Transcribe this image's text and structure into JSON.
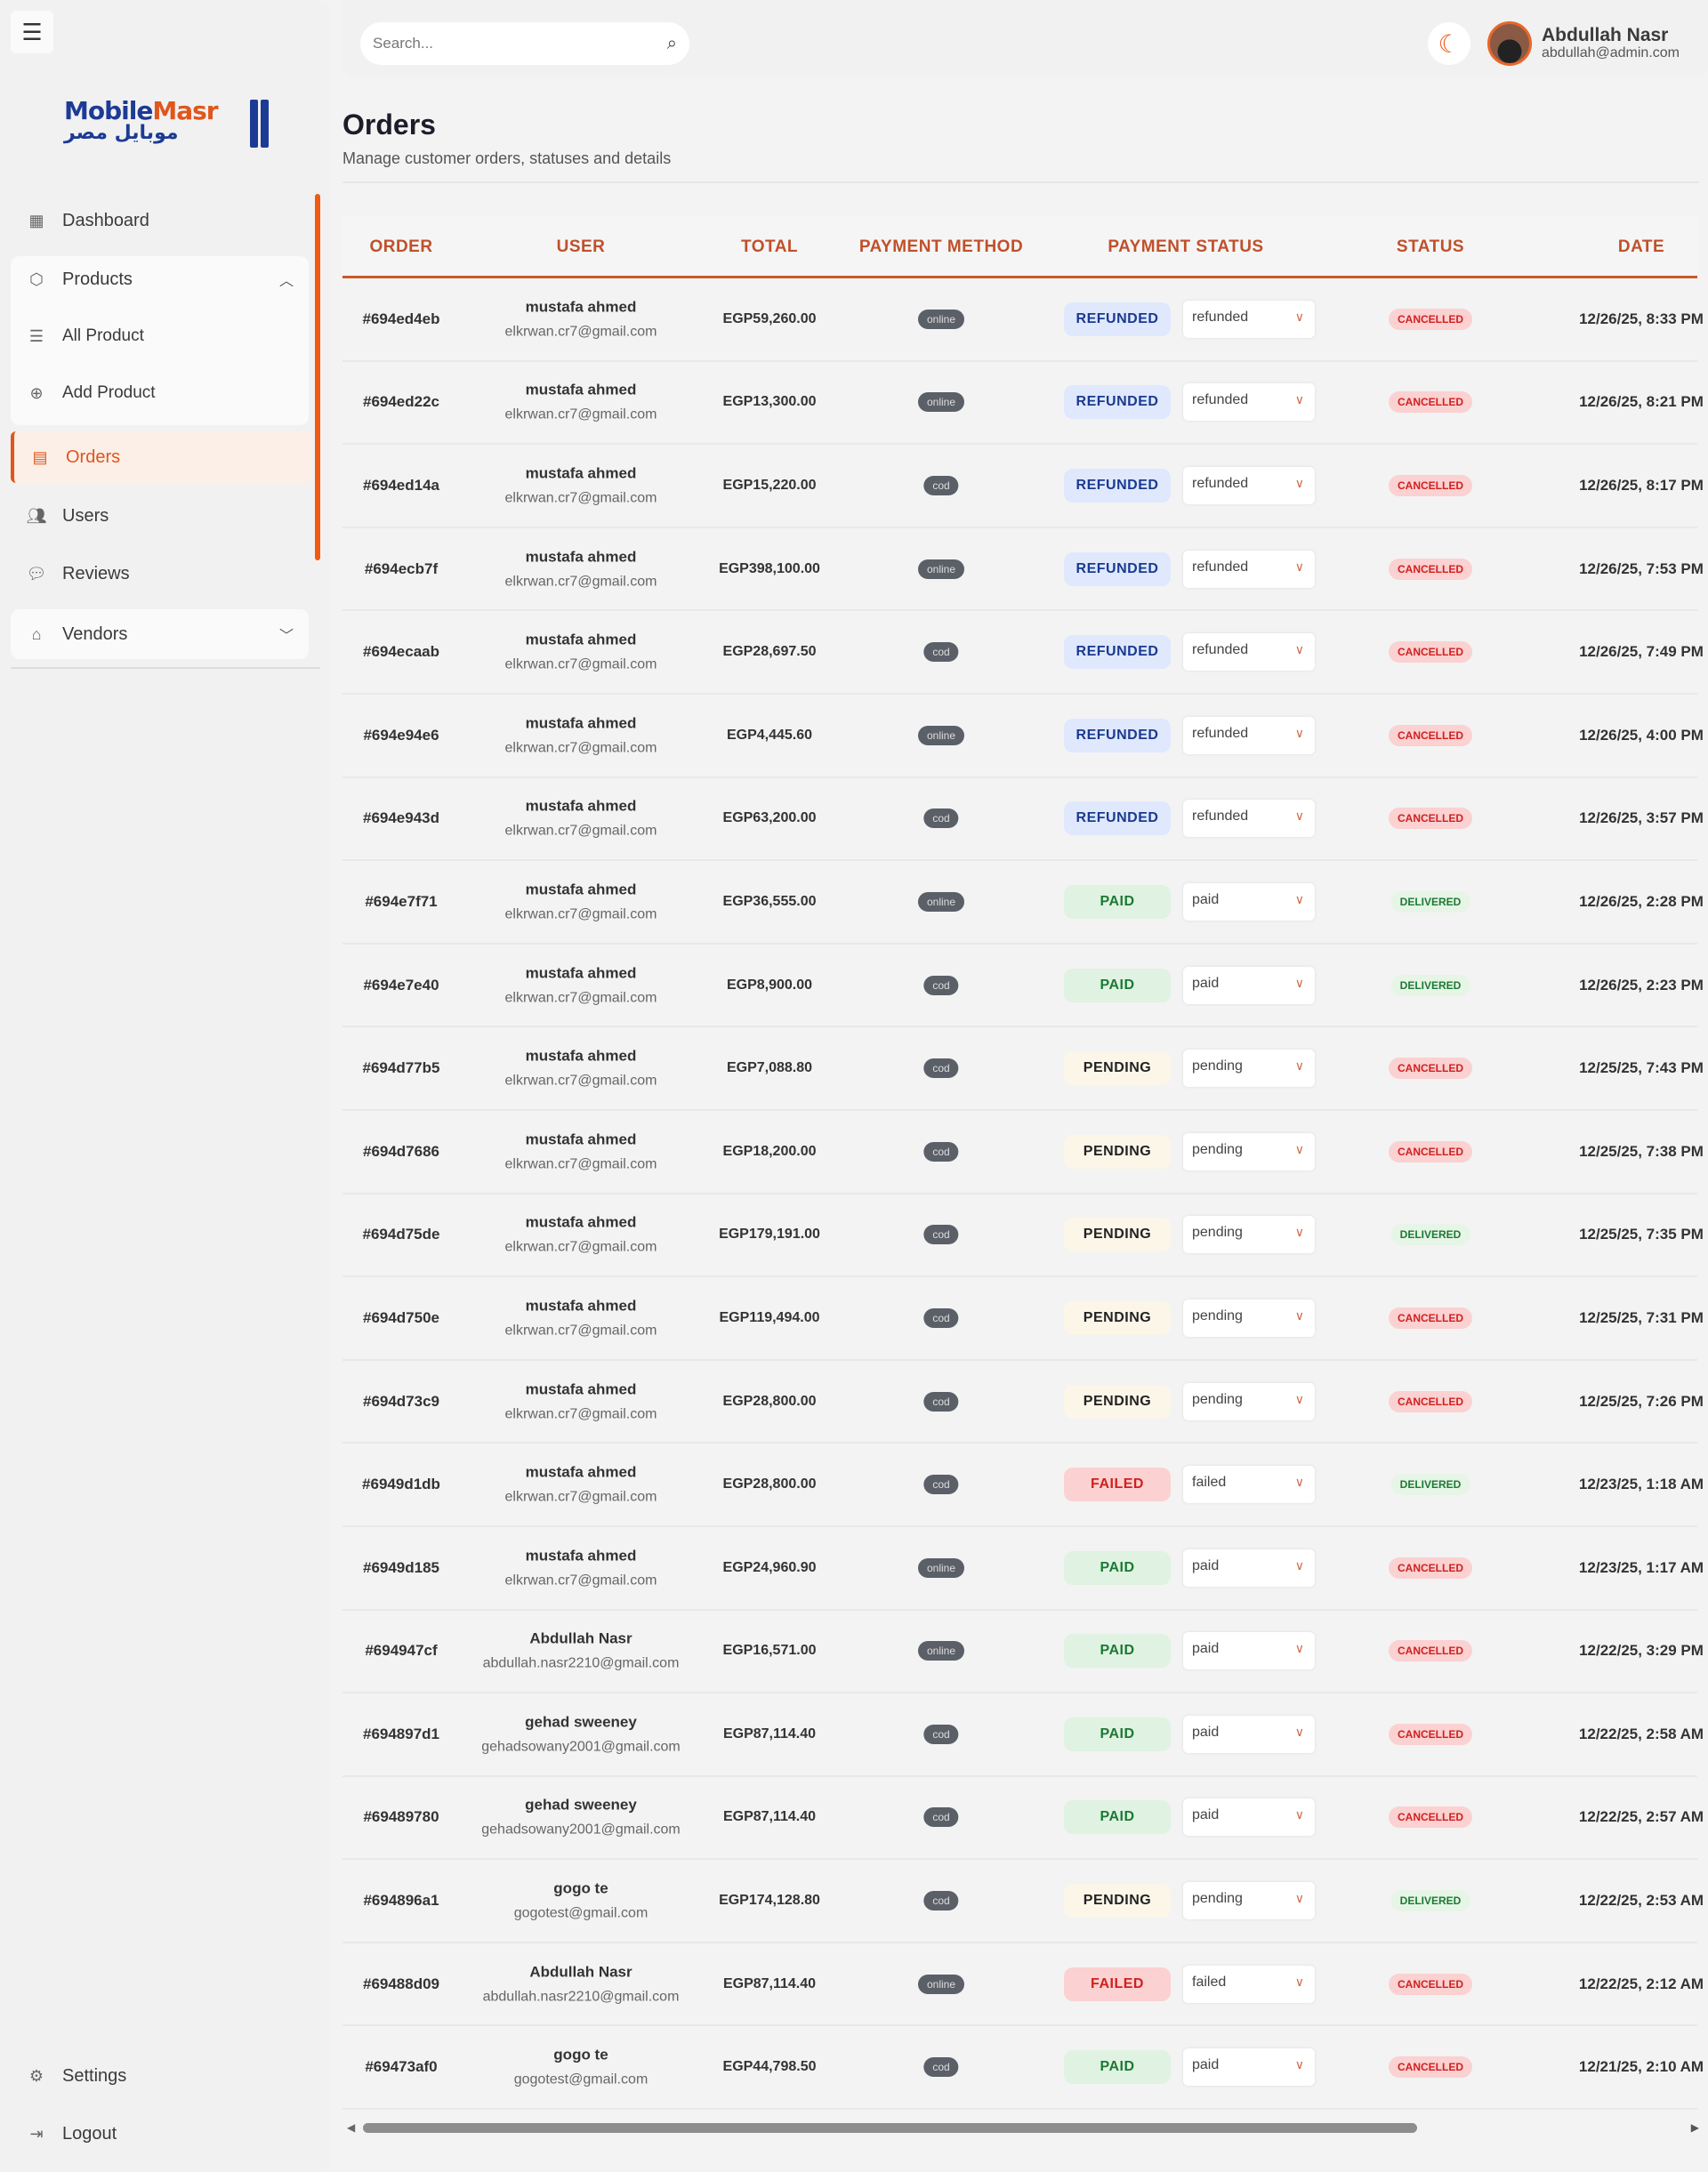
{
  "sidebar": {
    "brand_en_1": "Mobile",
    "brand_en_2": "Masr",
    "brand_ar": "موبايل مصر",
    "items": {
      "dashboard": "Dashboard",
      "products": "Products",
      "all_product": "All Product",
      "add_product": "Add Product",
      "orders": "Orders",
      "users": "Users",
      "reviews": "Reviews",
      "vendors": "Vendors",
      "settings": "Settings",
      "logout": "Logout"
    },
    "active": "Orders"
  },
  "header": {
    "search_placeholder": "Search...",
    "user_name": "Abdullah Nasr",
    "user_email": "abdullah@admin.com"
  },
  "page": {
    "title": "Orders",
    "subtitle": "Manage customer orders, statuses and details"
  },
  "colors": {
    "accent": "#e0561c",
    "brand_blue": "#1d3b94"
  },
  "table": {
    "columns": [
      "ORDER",
      "USER",
      "TOTAL",
      "PAYMENT METHOD",
      "PAYMENT STATUS",
      "STATUS",
      "DATE"
    ],
    "rows": [
      {
        "id": "#694ed4eb",
        "name": "mustafa ahmed",
        "email": "elkrwan.cr7@gmail.com",
        "total": "EGP59,260.00",
        "method": "online",
        "pay_badge": "REFUNDED",
        "pay_select": "refunded",
        "status": "CANCELLED",
        "date": "12/26/25, 8:33 PM"
      },
      {
        "id": "#694ed22c",
        "name": "mustafa ahmed",
        "email": "elkrwan.cr7@gmail.com",
        "total": "EGP13,300.00",
        "method": "online",
        "pay_badge": "REFUNDED",
        "pay_select": "refunded",
        "status": "CANCELLED",
        "date": "12/26/25, 8:21 PM"
      },
      {
        "id": "#694ed14a",
        "name": "mustafa ahmed",
        "email": "elkrwan.cr7@gmail.com",
        "total": "EGP15,220.00",
        "method": "cod",
        "pay_badge": "REFUNDED",
        "pay_select": "refunded",
        "status": "CANCELLED",
        "date": "12/26/25, 8:17 PM"
      },
      {
        "id": "#694ecb7f",
        "name": "mustafa ahmed",
        "email": "elkrwan.cr7@gmail.com",
        "total": "EGP398,100.00",
        "method": "online",
        "pay_badge": "REFUNDED",
        "pay_select": "refunded",
        "status": "CANCELLED",
        "date": "12/26/25, 7:53 PM"
      },
      {
        "id": "#694ecaab",
        "name": "mustafa ahmed",
        "email": "elkrwan.cr7@gmail.com",
        "total": "EGP28,697.50",
        "method": "cod",
        "pay_badge": "REFUNDED",
        "pay_select": "refunded",
        "status": "CANCELLED",
        "date": "12/26/25, 7:49 PM"
      },
      {
        "id": "#694e94e6",
        "name": "mustafa ahmed",
        "email": "elkrwan.cr7@gmail.com",
        "total": "EGP4,445.60",
        "method": "online",
        "pay_badge": "REFUNDED",
        "pay_select": "refunded",
        "status": "CANCELLED",
        "date": "12/26/25, 4:00 PM"
      },
      {
        "id": "#694e943d",
        "name": "mustafa ahmed",
        "email": "elkrwan.cr7@gmail.com",
        "total": "EGP63,200.00",
        "method": "cod",
        "pay_badge": "REFUNDED",
        "pay_select": "refunded",
        "status": "CANCELLED",
        "date": "12/26/25, 3:57 PM"
      },
      {
        "id": "#694e7f71",
        "name": "mustafa ahmed",
        "email": "elkrwan.cr7@gmail.com",
        "total": "EGP36,555.00",
        "method": "online",
        "pay_badge": "PAID",
        "pay_select": "paid",
        "status": "DELIVERED",
        "date": "12/26/25, 2:28 PM"
      },
      {
        "id": "#694e7e40",
        "name": "mustafa ahmed",
        "email": "elkrwan.cr7@gmail.com",
        "total": "EGP8,900.00",
        "method": "cod",
        "pay_badge": "PAID",
        "pay_select": "paid",
        "status": "DELIVERED",
        "date": "12/26/25, 2:23 PM"
      },
      {
        "id": "#694d77b5",
        "name": "mustafa ahmed",
        "email": "elkrwan.cr7@gmail.com",
        "total": "EGP7,088.80",
        "method": "cod",
        "pay_badge": "PENDING",
        "pay_select": "pending",
        "status": "CANCELLED",
        "date": "12/25/25, 7:43 PM"
      },
      {
        "id": "#694d7686",
        "name": "mustafa ahmed",
        "email": "elkrwan.cr7@gmail.com",
        "total": "EGP18,200.00",
        "method": "cod",
        "pay_badge": "PENDING",
        "pay_select": "pending",
        "status": "CANCELLED",
        "date": "12/25/25, 7:38 PM"
      },
      {
        "id": "#694d75de",
        "name": "mustafa ahmed",
        "email": "elkrwan.cr7@gmail.com",
        "total": "EGP179,191.00",
        "method": "cod",
        "pay_badge": "PENDING",
        "pay_select": "pending",
        "status": "DELIVERED",
        "date": "12/25/25, 7:35 PM"
      },
      {
        "id": "#694d750e",
        "name": "mustafa ahmed",
        "email": "elkrwan.cr7@gmail.com",
        "total": "EGP119,494.00",
        "method": "cod",
        "pay_badge": "PENDING",
        "pay_select": "pending",
        "status": "CANCELLED",
        "date": "12/25/25, 7:31 PM"
      },
      {
        "id": "#694d73c9",
        "name": "mustafa ahmed",
        "email": "elkrwan.cr7@gmail.com",
        "total": "EGP28,800.00",
        "method": "cod",
        "pay_badge": "PENDING",
        "pay_select": "pending",
        "status": "CANCELLED",
        "date": "12/25/25, 7:26 PM"
      },
      {
        "id": "#6949d1db",
        "name": "mustafa ahmed",
        "email": "elkrwan.cr7@gmail.com",
        "total": "EGP28,800.00",
        "method": "cod",
        "pay_badge": "FAILED",
        "pay_select": "failed",
        "status": "DELIVERED",
        "date": "12/23/25, 1:18 AM"
      },
      {
        "id": "#6949d185",
        "name": "mustafa ahmed",
        "email": "elkrwan.cr7@gmail.com",
        "total": "EGP24,960.90",
        "method": "online",
        "pay_badge": "PAID",
        "pay_select": "paid",
        "status": "CANCELLED",
        "date": "12/23/25, 1:17 AM"
      },
      {
        "id": "#694947cf",
        "name": "Abdullah Nasr",
        "email": "abdullah.nasr2210@gmail.com",
        "total": "EGP16,571.00",
        "method": "online",
        "pay_badge": "PAID",
        "pay_select": "paid",
        "status": "CANCELLED",
        "date": "12/22/25, 3:29 PM"
      },
      {
        "id": "#694897d1",
        "name": "gehad sweeney",
        "email": "gehadsowany2001@gmail.com",
        "total": "EGP87,114.40",
        "method": "cod",
        "pay_badge": "PAID",
        "pay_select": "paid",
        "status": "CANCELLED",
        "date": "12/22/25, 2:58 AM"
      },
      {
        "id": "#69489780",
        "name": "gehad sweeney",
        "email": "gehadsowany2001@gmail.com",
        "total": "EGP87,114.40",
        "method": "cod",
        "pay_badge": "PAID",
        "pay_select": "paid",
        "status": "CANCELLED",
        "date": "12/22/25, 2:57 AM"
      },
      {
        "id": "#694896a1",
        "name": "gogo te",
        "email": "gogotest@gmail.com",
        "total": "EGP174,128.80",
        "method": "cod",
        "pay_badge": "PENDING",
        "pay_select": "pending",
        "status": "DELIVERED",
        "date": "12/22/25, 2:53 AM"
      },
      {
        "id": "#69488d09",
        "name": "Abdullah Nasr",
        "email": "abdullah.nasr2210@gmail.com",
        "total": "EGP87,114.40",
        "method": "online",
        "pay_badge": "FAILED",
        "pay_select": "failed",
        "status": "CANCELLED",
        "date": "12/22/25, 2:12 AM"
      },
      {
        "id": "#69473af0",
        "name": "gogo te",
        "email": "gogotest@gmail.com",
        "total": "EGP44,798.50",
        "method": "cod",
        "pay_badge": "PAID",
        "pay_select": "paid",
        "status": "CANCELLED",
        "date": "12/21/25, 2:10 AM"
      }
    ]
  }
}
